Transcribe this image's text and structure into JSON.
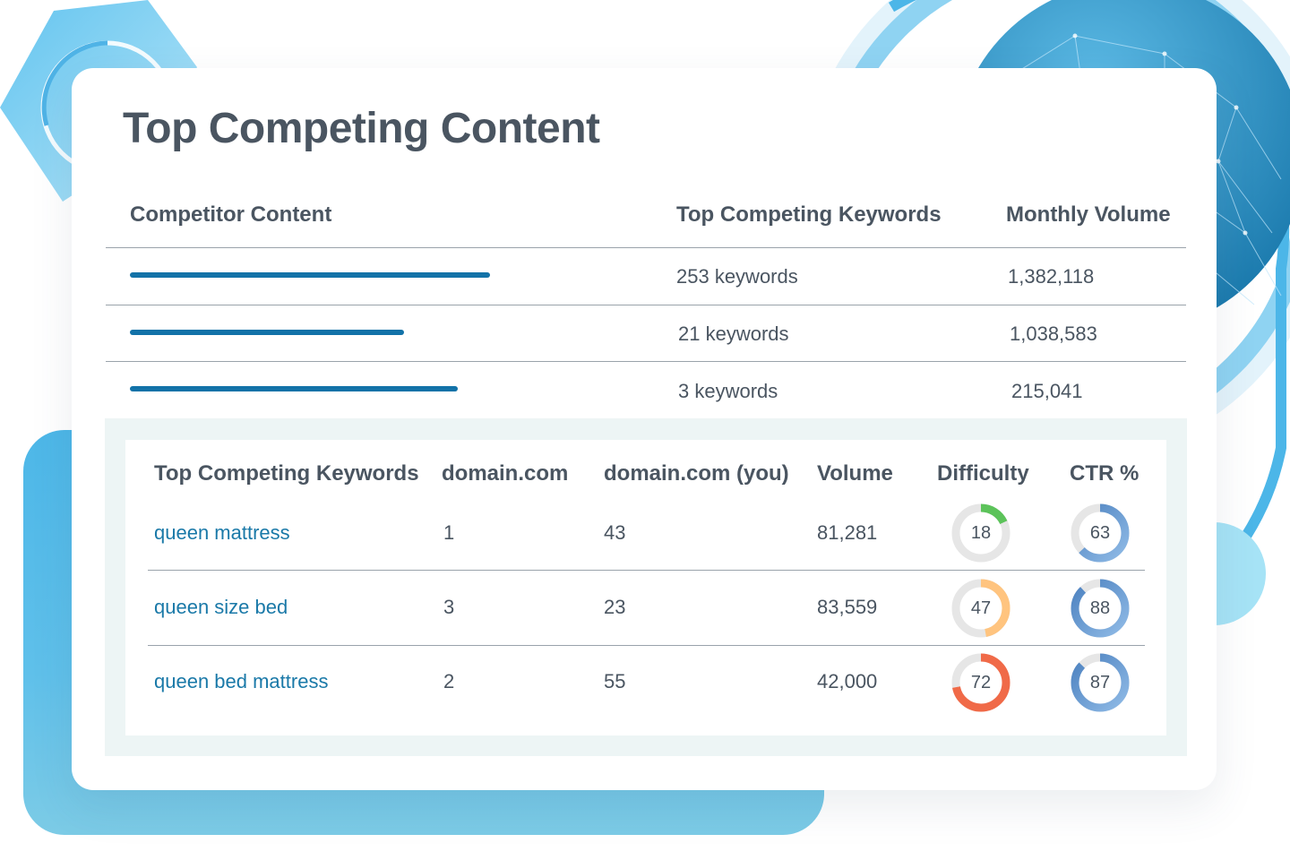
{
  "colors": {
    "accent": "#1272a8",
    "link": "#1a79a8",
    "text": "#4a5561",
    "difficulty_low": "#5cc35a",
    "difficulty_mid": "#ffc47f",
    "difficulty_high": "#f06a48",
    "ctr": "#4d82c0",
    "ctr_light": "#8fbae6",
    "ring_track": "#e6e6e6"
  },
  "card": {
    "title": "Top Competing Content"
  },
  "competitor_table": {
    "headers": [
      "Competitor Content",
      "Top Competing Keywords",
      "Monthly Volume"
    ],
    "rows": [
      {
        "bar_fraction": 1.0,
        "keywords": "253 keywords",
        "volume": "1,382,118"
      },
      {
        "bar_fraction": 0.76,
        "keywords": "21 keywords",
        "volume": "1,038,583"
      },
      {
        "bar_fraction": 0.91,
        "keywords": "3 keywords",
        "volume": "215,041"
      }
    ]
  },
  "keyword_table": {
    "headers": [
      "Top Competing Keywords",
      "domain.com",
      "domain.com (you)",
      "Volume",
      "Difficulty",
      "CTR %"
    ],
    "rows": [
      {
        "keyword": "queen mattress",
        "domain": "1",
        "you": "43",
        "volume": "81,281",
        "difficulty": "18",
        "ctr": "63"
      },
      {
        "keyword": "queen size bed",
        "domain": "3",
        "you": "23",
        "volume": "83,559",
        "difficulty": "47",
        "ctr": "88"
      },
      {
        "keyword": "queen bed mattress",
        "domain": "2",
        "you": "55",
        "volume": "42,000",
        "difficulty": "72",
        "ctr": "87"
      }
    ]
  },
  "icons": {
    "background": [
      "hexagon-shape",
      "globe-network",
      "arc-rings",
      "bubble-circle"
    ]
  }
}
